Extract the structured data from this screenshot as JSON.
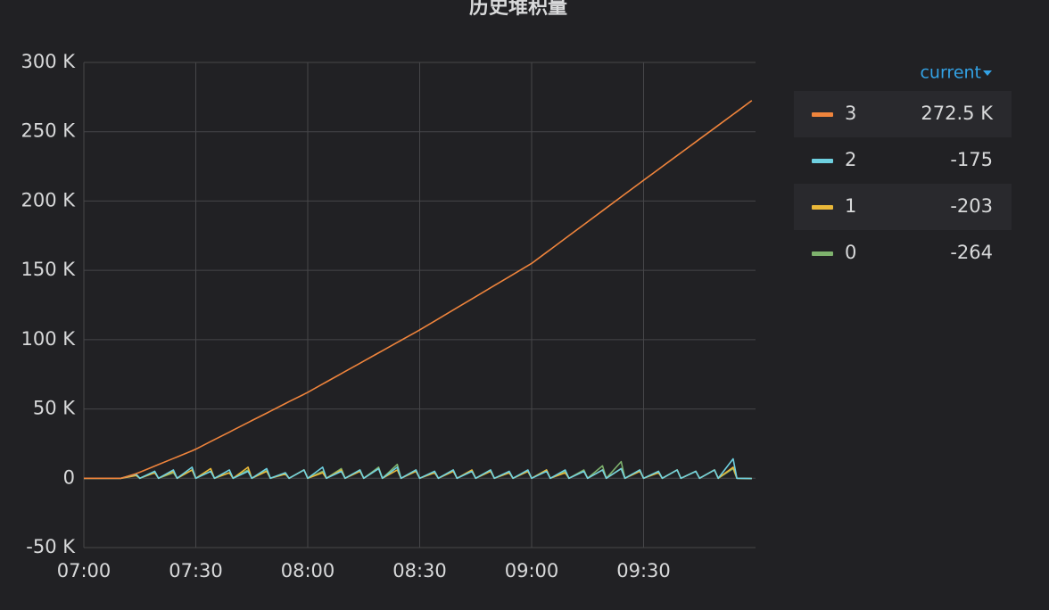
{
  "chart_data": {
    "type": "line",
    "title": "历史堆积量",
    "x": [
      "07:00",
      "07:04",
      "07:05",
      "07:09",
      "07:10",
      "07:14",
      "07:15",
      "07:19",
      "07:20",
      "07:24",
      "07:25",
      "07:29",
      "07:30",
      "07:34",
      "07:35",
      "07:39",
      "07:40",
      "07:44",
      "07:45",
      "07:49",
      "07:50",
      "07:54",
      "07:55",
      "07:59",
      "08:00",
      "08:04",
      "08:05",
      "08:09",
      "08:10",
      "08:14",
      "08:15",
      "08:19",
      "08:20",
      "08:24",
      "08:25",
      "08:29",
      "08:30",
      "08:34",
      "08:35",
      "08:39",
      "08:40",
      "08:44",
      "08:45",
      "08:49",
      "08:50",
      "08:54",
      "08:55",
      "08:59",
      "09:00",
      "09:04",
      "09:05",
      "09:09",
      "09:10",
      "09:14",
      "09:15",
      "09:19",
      "09:20",
      "09:24",
      "09:25",
      "09:29",
      "09:30",
      "09:34",
      "09:35",
      "09:39",
      "09:40",
      "09:44",
      "09:45",
      "09:49",
      "09:50",
      "09:54",
      "09:55",
      "09:59"
    ],
    "xlim": [
      "07:00",
      "10:00"
    ],
    "xticks": [
      "07:00",
      "07:30",
      "08:00",
      "08:30",
      "09:00",
      "09:30"
    ],
    "ylim": [
      -50000,
      300000
    ],
    "yticks": [
      {
        "value": -50000,
        "label": "-50 K"
      },
      0,
      {
        "value": 50000,
        "label": "50 K"
      },
      {
        "value": 100000,
        "label": "100 K"
      },
      {
        "value": 150000,
        "label": "150 K"
      },
      {
        "value": 200000,
        "label": "200 K"
      },
      {
        "value": 250000,
        "label": "250 K"
      },
      {
        "value": 300000,
        "label": "300 K"
      }
    ],
    "grid": true,
    "legend_position": "right",
    "legend_column": "current",
    "series": [
      {
        "name": "3",
        "color": "#ef843c",
        "current": {
          "value": 272500,
          "label": "272.5 K"
        },
        "values": [
          0,
          0,
          0,
          0,
          0,
          3300,
          4400,
          8800,
          9900,
          14300,
          15400,
          19800,
          21000,
          26500,
          27900,
          33300,
          34700,
          40200,
          41600,
          47000,
          48400,
          53900,
          55300,
          60600,
          62000,
          68000,
          69500,
          75500,
          77000,
          83000,
          84500,
          90500,
          92000,
          98000,
          99500,
          105500,
          107000,
          113400,
          115000,
          121400,
          123000,
          129400,
          131000,
          137400,
          139000,
          145400,
          147000,
          153400,
          155000,
          163000,
          165000,
          173000,
          175000,
          183000,
          185000,
          193000,
          195000,
          203000,
          205000,
          213000,
          215000,
          222900,
          224900,
          232800,
          234800,
          242700,
          244700,
          252600,
          254600,
          262500,
          264500,
          272500
        ]
      },
      {
        "name": "2",
        "color": "#6ed0e0",
        "current": -175,
        "values": [
          0,
          0,
          0,
          0,
          0,
          3000,
          0,
          5000,
          0,
          6000,
          0,
          8000,
          0,
          5000,
          0,
          6000,
          0,
          5000,
          0,
          7000,
          0,
          4000,
          0,
          6000,
          0,
          8000,
          0,
          5000,
          0,
          6000,
          0,
          7000,
          0,
          8000,
          0,
          6000,
          0,
          5000,
          0,
          6000,
          0,
          5000,
          0,
          6000,
          0,
          5000,
          0,
          6000,
          0,
          5000,
          0,
          6000,
          0,
          5000,
          0,
          6000,
          0,
          7000,
          0,
          6000,
          0,
          5000,
          0,
          6000,
          0,
          5000,
          0,
          6000,
          0,
          14000,
          0,
          -175
        ]
      },
      {
        "name": "1",
        "color": "#eab839",
        "current": -203,
        "values": [
          0,
          0,
          0,
          0,
          0,
          2000,
          0,
          4000,
          0,
          5000,
          0,
          6000,
          0,
          7000,
          0,
          4000,
          0,
          8000,
          0,
          5000,
          0,
          3000,
          0,
          6000,
          0,
          4000,
          0,
          6000,
          0,
          5000,
          0,
          7000,
          0,
          6000,
          0,
          5000,
          0,
          4000,
          0,
          5000,
          0,
          6000,
          0,
          5000,
          0,
          4000,
          0,
          5000,
          0,
          6000,
          0,
          4000,
          0,
          5000,
          0,
          6000,
          0,
          7000,
          0,
          5000,
          0,
          4000,
          0,
          6000,
          0,
          5000,
          0,
          6000,
          0,
          8000,
          0,
          -203
        ]
      },
      {
        "name": "0",
        "color": "#7eb26d",
        "current": -264,
        "values": [
          0,
          0,
          0,
          0,
          0,
          3000,
          0,
          5000,
          0,
          4000,
          0,
          6000,
          0,
          5000,
          0,
          4000,
          0,
          6000,
          0,
          5500,
          0,
          4000,
          0,
          6000,
          0,
          5000,
          0,
          7000,
          0,
          6000,
          0,
          8000,
          0,
          10000,
          0,
          6000,
          0,
          5000,
          0,
          6000,
          0,
          5000,
          0,
          6000,
          0,
          4000,
          0,
          5000,
          0,
          6000,
          0,
          5000,
          0,
          6000,
          0,
          9000,
          0,
          12000,
          0,
          6000,
          0,
          5000,
          0,
          6000,
          0,
          5000,
          0,
          6000,
          0,
          7000,
          0,
          -264
        ]
      }
    ]
  }
}
